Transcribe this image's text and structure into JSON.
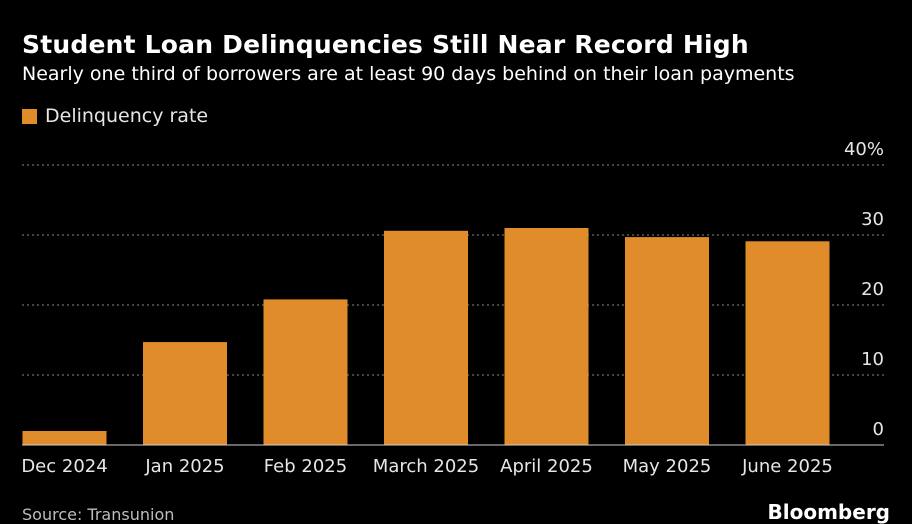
{
  "title": "Student Loan Delinquencies Still Near Record High",
  "subtitle": "Nearly one third of borrowers are at least 90 days behind on their loan payments",
  "colors": {
    "background": "#000000",
    "bar": "#e08c2a",
    "grid": "#8a8a8a",
    "text": "#ffffff"
  },
  "chart_data": {
    "type": "bar",
    "categories": [
      "Dec 2024",
      "Jan 2025",
      "Feb 2025",
      "March 2025",
      "April 2025",
      "May 2025",
      "June 2025"
    ],
    "series": [
      {
        "name": "Delinquency rate",
        "values": [
          2,
          14.7,
          20.8,
          30.6,
          31.0,
          29.7,
          29.1
        ]
      }
    ],
    "yticks": [
      "0",
      "10",
      "20",
      "30",
      "40%"
    ],
    "ylim": [
      0,
      40
    ],
    "grid": true,
    "legend_position": "top-left",
    "title": "Student Loan Delinquencies Still Near Record High",
    "subtitle": "Nearly one third of borrowers are at least 90 days behind on their loan payments",
    "xlabel": "",
    "ylabel": ""
  },
  "footer": {
    "source": "Source: Transunion",
    "brand": "Bloomberg"
  }
}
